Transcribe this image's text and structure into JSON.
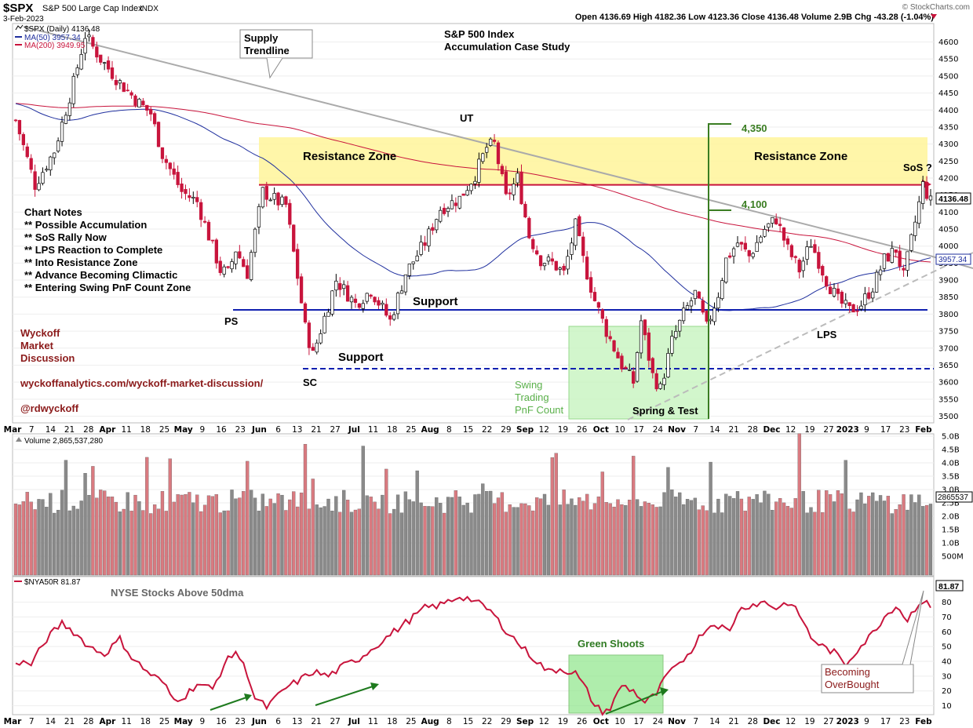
{
  "header": {
    "symbol": "$SPX",
    "name": "S&P 500 Large Cap Index",
    "exchange": "INDX",
    "date": "3-Feb-2023",
    "watermark": "© StockCharts.com",
    "ohlc": "Open 4136.69  High 4182.36  Low 4123.36  Close 4136.48  Volume 2.9B  Chg -43.28 (-1.04%)"
  },
  "legend": {
    "price": "$SPX (Daily) 4136.48",
    "ma50": "MA(50) 3957.34",
    "ma200": "MA(200) 3949.95",
    "volume": "Volume 2,865,537,280",
    "breadth": "$NYA50R 81.87"
  },
  "colors": {
    "up": "#ffffff",
    "down": "#c8143c",
    "ma50": "#1f2f9e",
    "ma200": "#c8143c",
    "resistance": "#fff59a",
    "support": "#1020b0",
    "greenBox": "#c8f5c0",
    "count": "#3a7d22",
    "volDown": "#d97a80",
    "volUp": "#8a8a8a",
    "breadth": "#c8143c"
  },
  "annotations": {
    "title1": "S&P 500 Index",
    "title2": "Accumulation Case Study",
    "supply1": "Supply",
    "supply2": "Trendline",
    "res1": "Resistance Zone",
    "res2": "Resistance Zone",
    "ut": "UT",
    "sos": "SoS ?",
    "support1": "Support",
    "support2": "Support",
    "ps": "PS",
    "sc": "SC",
    "lps": "LPS",
    "spring": "Spring & Test",
    "swing1": "Swing",
    "swing2": "Trading",
    "swing3": "PnF Count",
    "c4350": "4,350",
    "c4100": "4,100",
    "notesTitle": "Chart Notes",
    "notes": [
      "** Possible Accumulation",
      "** SoS Rally Now",
      "** LPS Reaction to Complete",
      "** Into Resistance Zone",
      "** Advance Becoming Climactic",
      "** Entering Swing PnF Count Zone"
    ],
    "wyckoff1": "Wyckoff",
    "wyckoff2": "Market",
    "wyckoff3": "Discussion",
    "url": "wyckoffanalytics.com/wyckoff-market-discussion/",
    "handle": "@rdwyckoff",
    "breadthTitle": "NYSE Stocks Above 50dma",
    "greenShoots": "Green Shoots",
    "overbought1": "Becoming",
    "overbought2": "OverBought",
    "lastPrice": "4136.48",
    "lastMA": "3957.34",
    "lastVol": "2865537",
    "lastBreadth": "81.87"
  },
  "chart_data": {
    "type": "candlestick",
    "price_axis": {
      "ticks": [
        3500,
        3550,
        3600,
        3650,
        3700,
        3750,
        3800,
        3850,
        3900,
        3950,
        4000,
        4050,
        4100,
        4150,
        4200,
        4250,
        4300,
        4350,
        4400,
        4450,
        4500,
        4550,
        4600
      ],
      "labels": [
        "3500",
        "3550",
        "3600",
        "3650",
        "3700",
        "3750",
        "3800",
        "3850",
        "3900",
        "3950",
        "4000",
        "4050",
        "4100",
        "4150",
        "4200",
        "4250",
        "4300",
        "4350",
        "4400",
        "4450",
        "4500",
        "4550",
        "4600"
      ]
    },
    "volume_axis": {
      "labels": [
        "500M",
        "1.0B",
        "1.5B",
        "2.0B",
        "2.5B",
        "3.0B",
        "3.5B",
        "4.0B",
        "4.5B",
        "5.0B"
      ]
    },
    "breadth_axis": {
      "labels": [
        "10",
        "20",
        "30",
        "40",
        "50",
        "60",
        "70",
        "80"
      ]
    },
    "x_axis": {
      "labels": [
        "Mar",
        "7",
        "14",
        "21",
        "28",
        "Apr",
        "11",
        "18",
        "25",
        "May",
        "9",
        "16",
        "23",
        "Jun",
        "6",
        "13",
        "21",
        "27",
        "Jul",
        "11",
        "18",
        "25",
        "Aug",
        "8",
        "15",
        "22",
        "29",
        "Sep",
        "12",
        "19",
        "26",
        "Oct",
        "10",
        "17",
        "24",
        "Nov",
        "7",
        "14",
        "21",
        "28",
        "Dec",
        "12",
        "19",
        "27",
        "2023",
        "9",
        "17",
        "23",
        "Feb"
      ],
      "bold": [
        "Mar",
        "Apr",
        "May",
        "Jun",
        "Jul",
        "Aug",
        "Sep",
        "Oct",
        "Nov",
        "Dec",
        "2023",
        "Feb"
      ]
    },
    "price_path": [
      [
        0,
        4370
      ],
      [
        5,
        4180
      ],
      [
        10,
        4280
      ],
      [
        15,
        4480
      ],
      [
        18,
        4620
      ],
      [
        22,
        4550
      ],
      [
        27,
        4480
      ],
      [
        32,
        4420
      ],
      [
        35,
        4390
      ],
      [
        38,
        4270
      ],
      [
        43,
        4160
      ],
      [
        47,
        4130
      ],
      [
        50,
        4030
      ],
      [
        53,
        3930
      ],
      [
        55,
        3920
      ],
      [
        57,
        3990
      ],
      [
        60,
        3920
      ],
      [
        64,
        4160
      ],
      [
        68,
        4130
      ],
      [
        70,
        4120
      ],
      [
        73,
        3910
      ],
      [
        75,
        3760
      ],
      [
        77,
        3680
      ],
      [
        80,
        3790
      ],
      [
        83,
        3900
      ],
      [
        88,
        3830
      ],
      [
        92,
        3870
      ],
      [
        97,
        3780
      ],
      [
        101,
        3920
      ],
      [
        106,
        4010
      ],
      [
        110,
        4110
      ],
      [
        115,
        4140
      ],
      [
        119,
        4210
      ],
      [
        122,
        4290
      ],
      [
        124,
        4300
      ],
      [
        127,
        4140
      ],
      [
        130,
        4200
      ],
      [
        133,
        4030
      ],
      [
        136,
        3960
      ],
      [
        139,
        3950
      ],
      [
        142,
        3920
      ],
      [
        145,
        4060
      ],
      [
        147,
        3960
      ],
      [
        150,
        3840
      ],
      [
        153,
        3750
      ],
      [
        157,
        3650
      ],
      [
        160,
        3600
      ],
      [
        162,
        3780
      ],
      [
        165,
        3620
      ],
      [
        167,
        3580
      ],
      [
        170,
        3720
      ],
      [
        173,
        3800
      ],
      [
        176,
        3860
      ],
      [
        179,
        3760
      ],
      [
        182,
        3860
      ],
      [
        184,
        3960
      ],
      [
        187,
        4010
      ],
      [
        190,
        3970
      ],
      [
        194,
        4050
      ],
      [
        197,
        4080
      ],
      [
        200,
        3990
      ],
      [
        203,
        3930
      ],
      [
        206,
        4010
      ],
      [
        210,
        3900
      ],
      [
        213,
        3840
      ],
      [
        216,
        3810
      ],
      [
        219,
        3830
      ],
      [
        222,
        3880
      ],
      [
        225,
        3960
      ],
      [
        228,
        3990
      ],
      [
        230,
        3910
      ],
      [
        233,
        4070
      ],
      [
        235,
        4180
      ],
      [
        237,
        4130
      ]
    ],
    "breadth_path": [
      [
        0,
        40
      ],
      [
        4,
        38
      ],
      [
        8,
        55
      ],
      [
        12,
        66
      ],
      [
        15,
        60
      ],
      [
        19,
        50
      ],
      [
        23,
        45
      ],
      [
        27,
        55
      ],
      [
        30,
        43
      ],
      [
        34,
        33
      ],
      [
        38,
        26
      ],
      [
        41,
        14
      ],
      [
        44,
        17
      ],
      [
        47,
        25
      ],
      [
        51,
        21
      ],
      [
        54,
        38
      ],
      [
        57,
        47
      ],
      [
        60,
        32
      ],
      [
        62,
        15
      ],
      [
        65,
        9
      ],
      [
        67,
        14
      ],
      [
        70,
        22
      ],
      [
        74,
        28
      ],
      [
        77,
        33
      ],
      [
        81,
        30
      ],
      [
        85,
        37
      ],
      [
        89,
        42
      ],
      [
        94,
        52
      ],
      [
        98,
        60
      ],
      [
        102,
        68
      ],
      [
        106,
        76
      ],
      [
        110,
        78
      ],
      [
        115,
        84
      ],
      [
        118,
        82
      ],
      [
        123,
        74
      ],
      [
        126,
        64
      ],
      [
        131,
        50
      ],
      [
        135,
        40
      ],
      [
        138,
        33
      ],
      [
        141,
        35
      ],
      [
        145,
        32
      ],
      [
        148,
        20
      ],
      [
        150,
        10
      ],
      [
        152,
        6
      ],
      [
        154,
        8
      ],
      [
        157,
        24
      ],
      [
        160,
        20
      ],
      [
        163,
        12
      ],
      [
        166,
        18
      ],
      [
        169,
        32
      ],
      [
        171,
        35
      ],
      [
        175,
        48
      ],
      [
        178,
        60
      ],
      [
        181,
        66
      ],
      [
        185,
        60
      ],
      [
        187,
        74
      ],
      [
        190,
        78
      ],
      [
        194,
        80
      ],
      [
        197,
        76
      ],
      [
        200,
        80
      ],
      [
        203,
        72
      ],
      [
        206,
        56
      ],
      [
        209,
        50
      ],
      [
        212,
        46
      ],
      [
        215,
        38
      ],
      [
        218,
        48
      ],
      [
        221,
        56
      ],
      [
        225,
        70
      ],
      [
        228,
        78
      ],
      [
        231,
        68
      ],
      [
        234,
        80
      ],
      [
        237,
        78
      ]
    ],
    "levels": {
      "resistance_zone": [
        4180,
        4320
      ],
      "red_line": 4180,
      "support": 3810,
      "support_dashed": 3635
    },
    "pnf_count": [
      4350,
      4100
    ]
  }
}
